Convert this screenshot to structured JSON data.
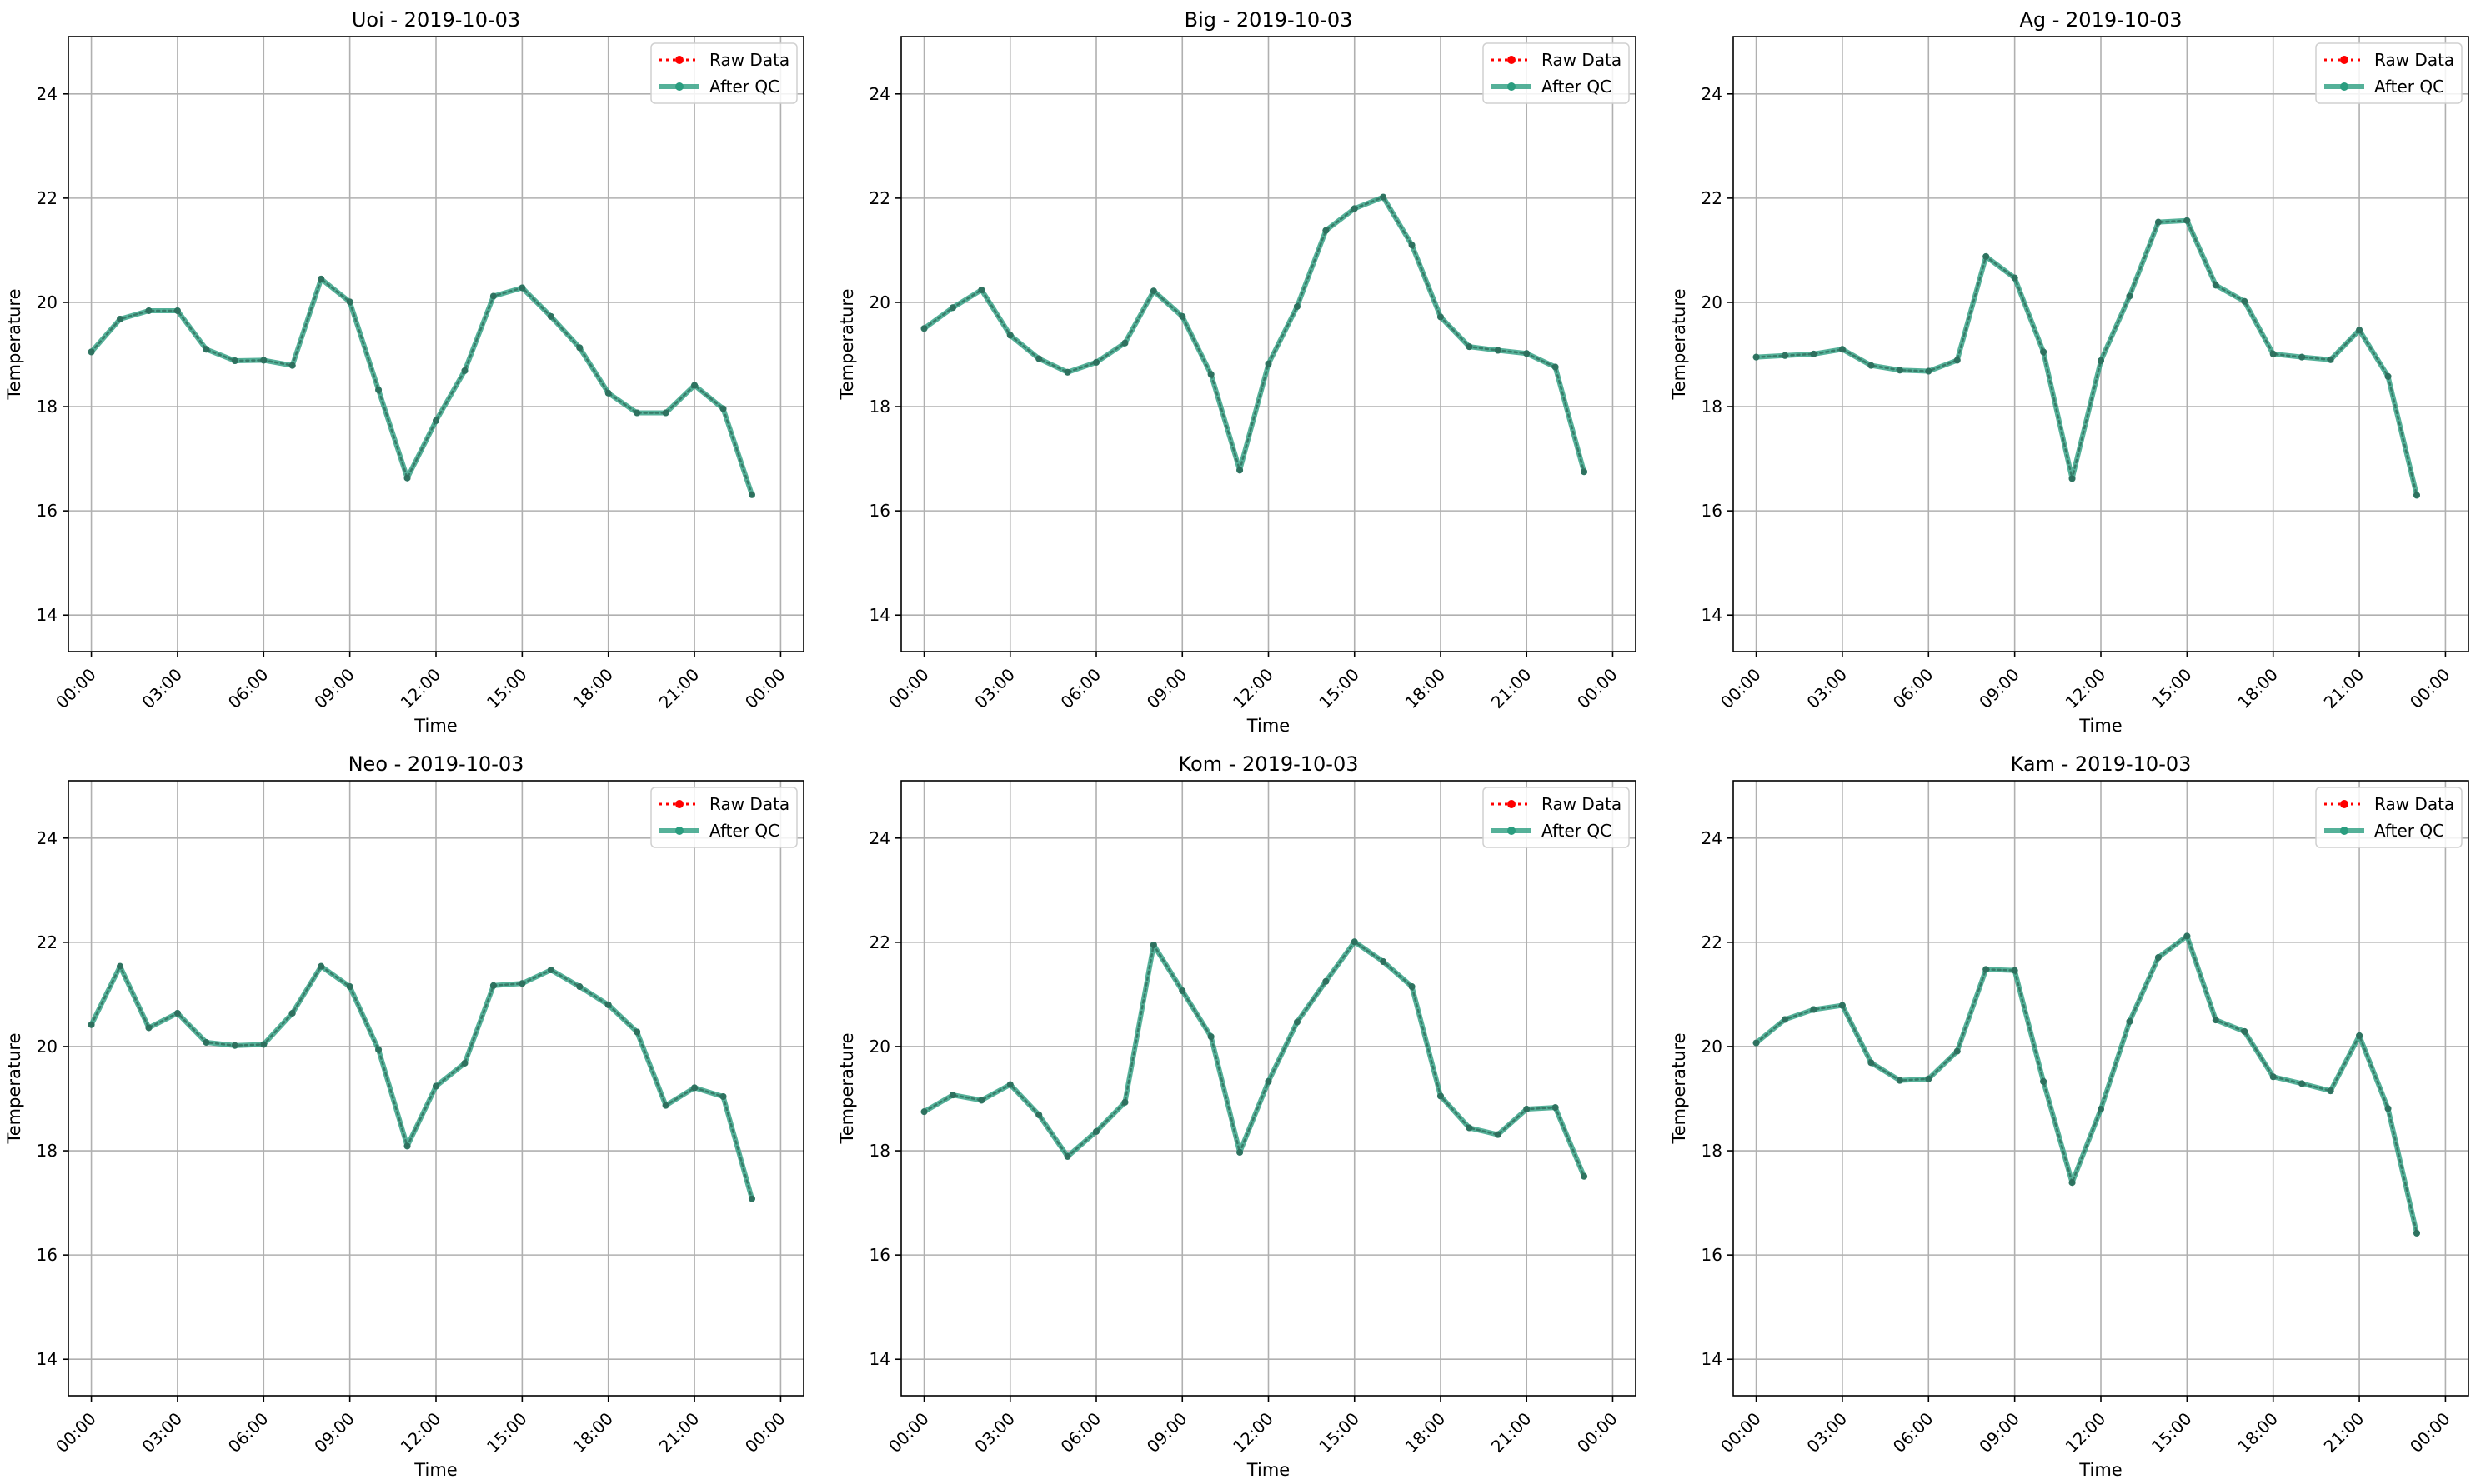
{
  "figure": {
    "legend_labels": {
      "raw": "Raw Data",
      "qc": "After QC"
    },
    "colors": {
      "raw": "#ff0000",
      "qc": "#2a9d7f",
      "qc_dark": "#2e6b5a",
      "grid": "#b0b0b0",
      "axes": "#000000"
    }
  },
  "chart_data": [
    {
      "type": "line",
      "title": "Uoi - 2019-10-03",
      "xlabel": "Time",
      "ylabel": "Temperature",
      "xlim": [
        "2019-10-02 23:12",
        "2019-10-04 00:48"
      ],
      "ylim": [
        13.3,
        25.1
      ],
      "xticks": [
        "00:00",
        "03:00",
        "06:00",
        "09:00",
        "12:00",
        "15:00",
        "18:00",
        "21:00",
        "00:00"
      ],
      "yticks": [
        14,
        16,
        18,
        20,
        22,
        24
      ],
      "grid": true,
      "legend": "top-right",
      "x": [
        "00:00",
        "01:00",
        "02:00",
        "03:00",
        "04:00",
        "05:00",
        "06:00",
        "07:00",
        "08:00",
        "09:00",
        "10:00",
        "11:00",
        "12:00",
        "13:00",
        "14:00",
        "15:00",
        "16:00",
        "17:00",
        "18:00",
        "19:00",
        "20:00",
        "21:00",
        "22:00",
        "23:00"
      ],
      "series": [
        {
          "name": "Raw Data",
          "values": [
            19.05,
            19.68,
            19.84,
            19.84,
            19.1,
            18.88,
            18.89,
            18.79,
            20.45,
            20.01,
            18.32,
            16.63,
            17.73,
            18.69,
            20.12,
            20.28,
            19.73,
            19.13,
            18.26,
            17.88,
            17.88,
            18.41,
            17.96,
            16.31
          ]
        },
        {
          "name": "After QC",
          "values": [
            19.05,
            19.68,
            19.84,
            19.84,
            19.1,
            18.88,
            18.89,
            18.79,
            20.45,
            20.01,
            18.32,
            16.63,
            17.73,
            18.69,
            20.12,
            20.28,
            19.73,
            19.13,
            18.26,
            17.88,
            17.88,
            18.41,
            17.96,
            16.31
          ]
        }
      ]
    },
    {
      "type": "line",
      "title": "Big - 2019-10-03",
      "xlabel": "Time",
      "ylabel": "Temperature",
      "xlim": [
        "2019-10-02 23:12",
        "2019-10-04 00:48"
      ],
      "ylim": [
        13.3,
        25.1
      ],
      "xticks": [
        "00:00",
        "03:00",
        "06:00",
        "09:00",
        "12:00",
        "15:00",
        "18:00",
        "21:00",
        "00:00"
      ],
      "yticks": [
        14,
        16,
        18,
        20,
        22,
        24
      ],
      "grid": true,
      "legend": "top-right",
      "x": [
        "00:00",
        "01:00",
        "02:00",
        "03:00",
        "04:00",
        "05:00",
        "06:00",
        "07:00",
        "08:00",
        "09:00",
        "10:00",
        "11:00",
        "12:00",
        "13:00",
        "14:00",
        "15:00",
        "16:00",
        "17:00",
        "18:00",
        "19:00",
        "20:00",
        "21:00",
        "22:00",
        "23:00"
      ],
      "series": [
        {
          "name": "Raw Data",
          "values": [
            19.5,
            19.9,
            20.24,
            19.37,
            18.92,
            18.66,
            18.85,
            19.22,
            20.22,
            19.73,
            18.62,
            16.78,
            18.82,
            19.92,
            21.38,
            21.8,
            22.02,
            21.1,
            19.72,
            19.15,
            19.08,
            19.02,
            18.76,
            16.75
          ]
        },
        {
          "name": "After QC",
          "values": [
            19.5,
            19.9,
            20.24,
            19.37,
            18.92,
            18.66,
            18.85,
            19.22,
            20.22,
            19.73,
            18.62,
            16.78,
            18.82,
            19.92,
            21.38,
            21.8,
            22.02,
            21.1,
            19.72,
            19.15,
            19.08,
            19.02,
            18.76,
            16.75
          ]
        }
      ]
    },
    {
      "type": "line",
      "title": "Ag - 2019-10-03",
      "xlabel": "Time",
      "ylabel": "Temperature",
      "xlim": [
        "2019-10-02 23:12",
        "2019-10-04 00:48"
      ],
      "ylim": [
        13.3,
        25.1
      ],
      "xticks": [
        "00:00",
        "03:00",
        "06:00",
        "09:00",
        "12:00",
        "15:00",
        "18:00",
        "21:00",
        "00:00"
      ],
      "yticks": [
        14,
        16,
        18,
        20,
        22,
        24
      ],
      "grid": true,
      "legend": "top-right",
      "x": [
        "00:00",
        "01:00",
        "02:00",
        "03:00",
        "04:00",
        "05:00",
        "06:00",
        "07:00",
        "08:00",
        "09:00",
        "10:00",
        "11:00",
        "12:00",
        "13:00",
        "14:00",
        "15:00",
        "16:00",
        "17:00",
        "18:00",
        "19:00",
        "20:00",
        "21:00",
        "22:00",
        "23:00"
      ],
      "series": [
        {
          "name": "Raw Data",
          "values": [
            18.95,
            18.98,
            19.01,
            19.1,
            18.79,
            18.7,
            18.68,
            18.89,
            20.88,
            20.47,
            19.05,
            16.62,
            18.88,
            20.12,
            21.54,
            21.57,
            20.33,
            20.02,
            19.01,
            18.95,
            18.9,
            19.47,
            18.58,
            16.3
          ]
        },
        {
          "name": "After QC",
          "values": [
            18.95,
            18.98,
            19.01,
            19.1,
            18.79,
            18.7,
            18.68,
            18.89,
            20.88,
            20.47,
            19.05,
            16.62,
            18.88,
            20.12,
            21.54,
            21.57,
            20.33,
            20.02,
            19.01,
            18.95,
            18.9,
            19.47,
            18.58,
            16.3
          ]
        }
      ]
    },
    {
      "type": "line",
      "title": "Neo - 2019-10-03",
      "xlabel": "Time",
      "ylabel": "Temperature",
      "xlim": [
        "2019-10-02 23:12",
        "2019-10-04 00:48"
      ],
      "ylim": [
        13.3,
        25.1
      ],
      "xticks": [
        "00:00",
        "03:00",
        "06:00",
        "09:00",
        "12:00",
        "15:00",
        "18:00",
        "21:00",
        "00:00"
      ],
      "yticks": [
        14,
        16,
        18,
        20,
        22,
        24
      ],
      "grid": true,
      "legend": "top-right",
      "x": [
        "00:00",
        "01:00",
        "02:00",
        "03:00",
        "04:00",
        "05:00",
        "06:00",
        "07:00",
        "08:00",
        "09:00",
        "10:00",
        "11:00",
        "12:00",
        "13:00",
        "14:00",
        "15:00",
        "16:00",
        "17:00",
        "18:00",
        "19:00",
        "20:00",
        "21:00",
        "22:00",
        "23:00"
      ],
      "series": [
        {
          "name": "Raw Data",
          "values": [
            20.42,
            21.54,
            20.36,
            20.64,
            20.08,
            20.02,
            20.04,
            20.64,
            21.54,
            21.15,
            19.94,
            18.09,
            19.24,
            19.68,
            21.17,
            21.21,
            21.47,
            21.15,
            20.8,
            20.28,
            18.87,
            19.21,
            19.04,
            17.08
          ]
        },
        {
          "name": "After QC",
          "values": [
            20.42,
            21.54,
            20.36,
            20.64,
            20.08,
            20.02,
            20.04,
            20.64,
            21.54,
            21.15,
            19.94,
            18.09,
            19.24,
            19.68,
            21.17,
            21.21,
            21.47,
            21.15,
            20.8,
            20.28,
            18.87,
            19.21,
            19.04,
            17.08
          ]
        }
      ]
    },
    {
      "type": "line",
      "title": "Kom - 2019-10-03",
      "xlabel": "Time",
      "ylabel": "Temperature",
      "xlim": [
        "2019-10-02 23:12",
        "2019-10-04 00:48"
      ],
      "ylim": [
        13.3,
        25.1
      ],
      "xticks": [
        "00:00",
        "03:00",
        "06:00",
        "09:00",
        "12:00",
        "15:00",
        "18:00",
        "21:00",
        "00:00"
      ],
      "yticks": [
        14,
        16,
        18,
        20,
        22,
        24
      ],
      "grid": true,
      "legend": "top-right",
      "x": [
        "00:00",
        "01:00",
        "02:00",
        "03:00",
        "04:00",
        "05:00",
        "06:00",
        "07:00",
        "08:00",
        "09:00",
        "10:00",
        "11:00",
        "12:00",
        "13:00",
        "14:00",
        "15:00",
        "16:00",
        "17:00",
        "18:00",
        "19:00",
        "20:00",
        "21:00",
        "22:00",
        "23:00"
      ],
      "series": [
        {
          "name": "Raw Data",
          "values": [
            18.75,
            19.07,
            18.97,
            19.27,
            18.69,
            17.89,
            18.37,
            18.93,
            21.95,
            21.07,
            20.19,
            17.97,
            19.33,
            20.47,
            21.25,
            22.01,
            21.63,
            21.15,
            19.05,
            18.44,
            18.31,
            18.8,
            18.83,
            17.51
          ]
        },
        {
          "name": "After QC",
          "values": [
            18.75,
            19.07,
            18.97,
            19.27,
            18.69,
            17.89,
            18.37,
            18.93,
            21.95,
            21.07,
            20.19,
            17.97,
            19.33,
            20.47,
            21.25,
            22.01,
            21.63,
            21.15,
            19.05,
            18.44,
            18.31,
            18.8,
            18.83,
            17.51
          ]
        }
      ]
    },
    {
      "type": "line",
      "title": "Kam - 2019-10-03",
      "xlabel": "Time",
      "ylabel": "Temperature",
      "xlim": [
        "2019-10-02 23:12",
        "2019-10-04 00:48"
      ],
      "ylim": [
        13.3,
        25.1
      ],
      "xticks": [
        "00:00",
        "03:00",
        "06:00",
        "09:00",
        "12:00",
        "15:00",
        "18:00",
        "21:00",
        "00:00"
      ],
      "yticks": [
        14,
        16,
        18,
        20,
        22,
        24
      ],
      "grid": true,
      "legend": "top-right",
      "x": [
        "00:00",
        "01:00",
        "02:00",
        "03:00",
        "04:00",
        "05:00",
        "06:00",
        "07:00",
        "08:00",
        "09:00",
        "10:00",
        "11:00",
        "12:00",
        "13:00",
        "14:00",
        "15:00",
        "16:00",
        "17:00",
        "18:00",
        "19:00",
        "20:00",
        "21:00",
        "22:00",
        "23:00"
      ],
      "series": [
        {
          "name": "Raw Data",
          "values": [
            20.07,
            20.52,
            20.71,
            20.79,
            19.69,
            19.35,
            19.38,
            19.91,
            21.48,
            21.46,
            19.33,
            17.39,
            18.8,
            20.48,
            21.71,
            22.12,
            20.51,
            20.29,
            19.42,
            19.29,
            19.15,
            20.21,
            18.81,
            16.42
          ]
        },
        {
          "name": "After QC",
          "values": [
            20.07,
            20.52,
            20.71,
            20.79,
            19.69,
            19.35,
            19.38,
            19.91,
            21.48,
            21.46,
            19.33,
            17.39,
            18.8,
            20.48,
            21.71,
            22.12,
            20.51,
            20.29,
            19.42,
            19.29,
            19.15,
            20.21,
            18.81,
            16.42
          ]
        }
      ]
    }
  ]
}
